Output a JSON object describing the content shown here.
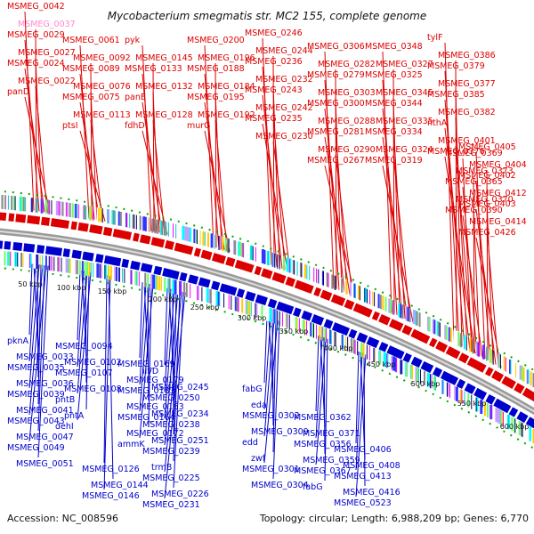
{
  "title": "Mycobacterium smegmatis str. MC2 155, complete genome",
  "footer": {
    "accession": "Accession: NC_008596",
    "summary": "Topology: circular; Length: 6,988,209 bp; Genes: 6,770"
  },
  "colors": {
    "plus_strand": "#dd0000",
    "minus_strand": "#0000cc",
    "highlight_label": "#ff88cc",
    "backbone": "#999999",
    "dashed_border": "#00aa00"
  },
  "kbp_ticks": [
    "50 kbp",
    "100 kbp",
    "150 kbp",
    "200 kbp",
    "250 kbp",
    "300 kbp",
    "350 kbp",
    "400 kbp",
    "450 kbp",
    "500 kbp",
    "550 kbp",
    "600 kbp"
  ],
  "plus_labels": [
    "MSMEG_0042",
    "MSMEG_0037",
    "MSMEG_0029",
    "MSMEG_0027",
    "MSMEG_0024",
    "MSMEG_0022",
    "panD",
    "MSMEG_0061",
    "MSMEG_0092",
    "MSMEG_0089",
    "MSMEG_0076",
    "MSMEG_0075",
    "MSMEG_0113",
    "ptsI",
    "pyk",
    "MSMEG_0145",
    "MSMEG_0133",
    "MSMEG_0132",
    "panE",
    "MSMEG_0128",
    "fdhD",
    "MSMEG_0200",
    "MSMEG_0196",
    "MSMEG_0188",
    "MSMEG_0184",
    "MSMEG_0195",
    "MSMEG_0192",
    "murG",
    "MSMEG_0246",
    "MSMEG_0244",
    "MSMEG_0236",
    "MSMEG_0232",
    "MSMEG_0243",
    "MSMEG_0242",
    "MSMEG_0235",
    "MSMEG_0230",
    "MSMEG_0306",
    "MSMEG_0282",
    "MSMEG_0279",
    "MSMEG_0303",
    "MSMEG_0300",
    "MSMEG_0288",
    "MSMEG_0281",
    "MSMEG_0290",
    "MSMEG_0267",
    "MSMEG_0348",
    "MSMEG_0327",
    "MSMEG_0325",
    "MSMEG_0345",
    "MSMEG_0344",
    "MSMEG_0335",
    "MSMEG_0334",
    "MSMEG_0324",
    "MSMEG_0319",
    "tylF",
    "MSMEG_0386",
    "MSMEG_0379",
    "MSMEG_0377",
    "MSMEG_0385",
    "MSMEG_0382",
    "nthA",
    "MSMEG_0401",
    "MSMEG_0376",
    "MSMEG_0369",
    "MSMEG_0373",
    "MSMEG_0365",
    "MSMEG_0370",
    "MSMEG_0390",
    "MSMEG_0405",
    "MSMEG_0404",
    "MSMEG_0402",
    "MSMEG_0412",
    "MSMEG_0403",
    "MSMEG_0414",
    "MSMEG_0426"
  ],
  "minus_labels": [
    "pknA",
    "MSMEG_0033",
    "MSMEG_0035",
    "MSMEG_0036",
    "MSMEG_0039",
    "MSMEG_0041",
    "MSMEG_0043",
    "MSMEG_0047",
    "MSMEG_0049",
    "MSMEG_0051",
    "MSMEG_0094",
    "MSMEG_0102",
    "MSMEG_0107",
    "MSMEG_0108",
    "pntB",
    "pntA",
    "dehI",
    "MSMEG_0126",
    "MSMEG_0144",
    "MSMEG_0146",
    "MSMEG_0169",
    "MSMEG_0179",
    "MSMEG_0183",
    "MSMEG_0163",
    "MSMEG_0164",
    "MSMEG_0172",
    "ammK",
    "ilvD",
    "MSMEG_0245",
    "MSMEG_0250",
    "MSMEG_0234",
    "MSMEG_0238",
    "MSMEG_0251",
    "MSMEG_0239",
    "trmB",
    "MSMEG_0225",
    "MSMEG_0226",
    "MSMEG_0231",
    "fabG",
    "eda",
    "MSMEG_0302",
    "MSMEG_0309",
    "edd",
    "zwf",
    "MSMEG_0301",
    "MSMEG_0304",
    "MSMEG_0362",
    "MSMEG_0371",
    "MSMEG_0356",
    "MSMEG_0359",
    "MSMEG_0367",
    "fabG",
    "MSMEG_0406",
    "MSMEG_0408",
    "MSMEG_0413",
    "MSMEG_0416",
    "MSMEG_0523"
  ]
}
